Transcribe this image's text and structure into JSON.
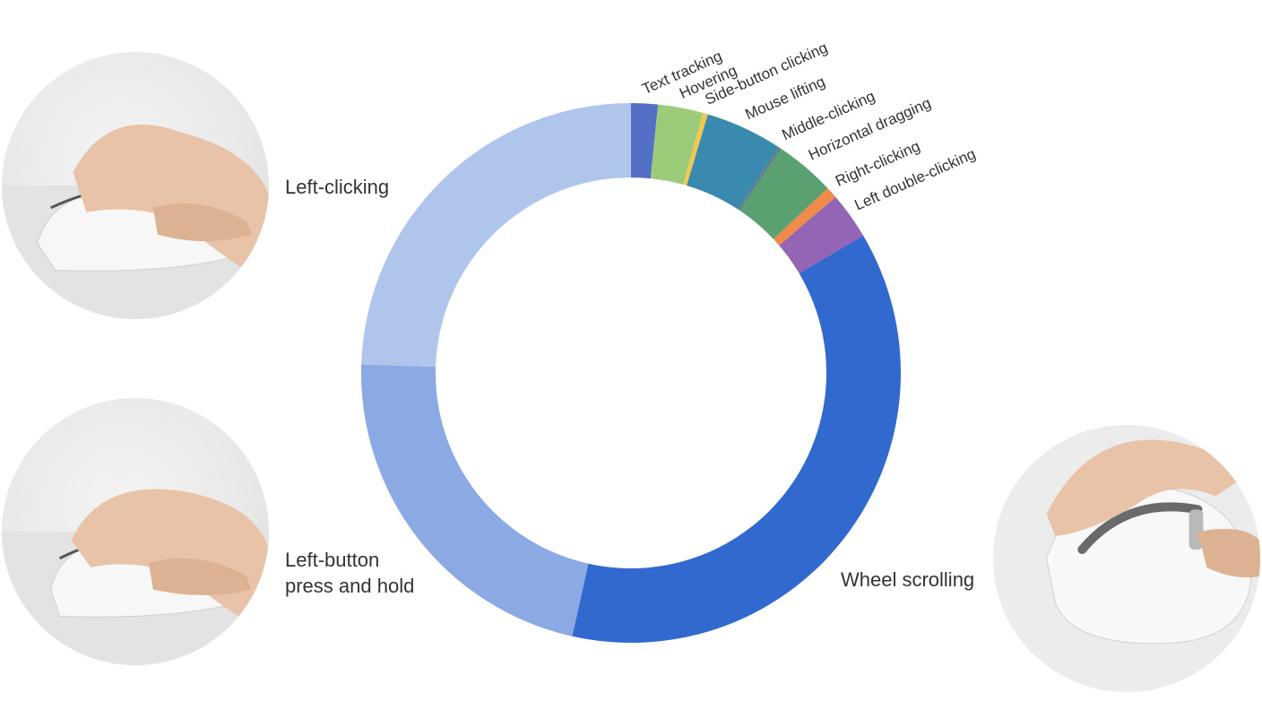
{
  "chart_data": {
    "type": "pie",
    "style": "donut",
    "title": "",
    "unit": "",
    "slices": [
      {
        "label": "Text tracking",
        "value": 1.6,
        "color": "#5470C6"
      },
      {
        "label": "Hovering",
        "value": 2.7,
        "color": "#9CCB7A"
      },
      {
        "label": "Side-button clicking",
        "value": 0.3,
        "color": "#F2C94C"
      },
      {
        "label": "Mouse lifting",
        "value": 4.6,
        "color": "#3A89AE"
      },
      {
        "label": "Middle-clicking",
        "value": 0.2,
        "color": "#5F7F8A"
      },
      {
        "label": "Horizontal dragging",
        "value": 3.6,
        "color": "#5AA070"
      },
      {
        "label": "Right-clicking",
        "value": 0.7,
        "color": "#F08A4B"
      },
      {
        "label": "Left double-clicking",
        "value": 2.8,
        "color": "#9565B5"
      },
      {
        "label": "Wheel scrolling",
        "value": 37.0,
        "color": "#3169CE"
      },
      {
        "label": "Left-button press and hold",
        "value": 22.0,
        "color": "#8BA9E3"
      },
      {
        "label": "Left-clicking",
        "value": 24.5,
        "color": "#B0C5EC"
      }
    ],
    "legend": "none",
    "start_angle_deg": 0,
    "direction": "clockwise"
  },
  "labels": {
    "left_clicking": "Left-clicking",
    "left_button_hold": "Left-button\npress and hold",
    "wheel_scrolling": "Wheel scrolling"
  },
  "photos": {
    "top_left": "mouse-hand-left-click-photo",
    "bottom_left": "mouse-hand-press-hold-photo",
    "right": "mouse-hand-wheel-scroll-photo"
  }
}
